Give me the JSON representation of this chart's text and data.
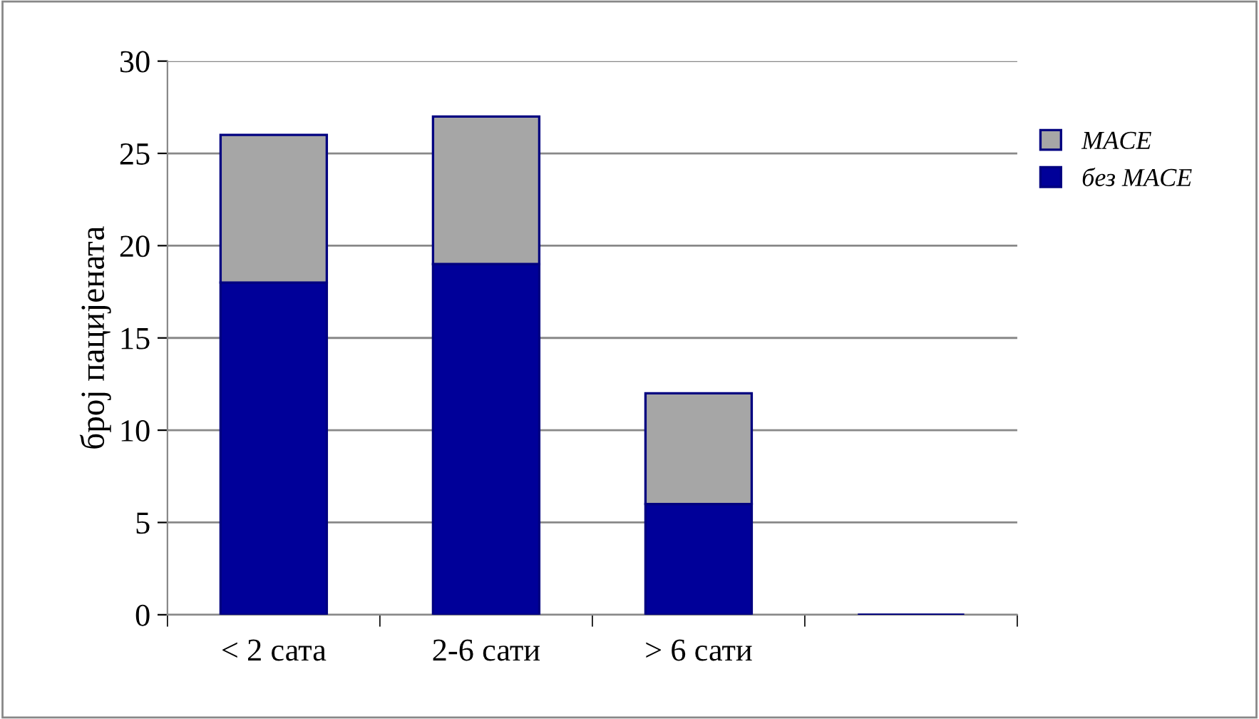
{
  "chart_data": {
    "type": "bar",
    "stacked": true,
    "ylabel": "број пацијената",
    "categories": [
      "< 2 сата",
      "2-6 сати",
      "> 6 сати",
      null
    ],
    "series": [
      {
        "name": "без MACE",
        "color": "#000099",
        "values": [
          18,
          19,
          6,
          null
        ]
      },
      {
        "name": "MACE",
        "color": "#a6a6a6",
        "values": [
          8,
          8,
          6,
          null
        ]
      }
    ],
    "ylim": [
      0,
      30
    ],
    "yticks": [
      0,
      5,
      10,
      15,
      20,
      25,
      30
    ],
    "grid": "y",
    "legend": "right"
  }
}
